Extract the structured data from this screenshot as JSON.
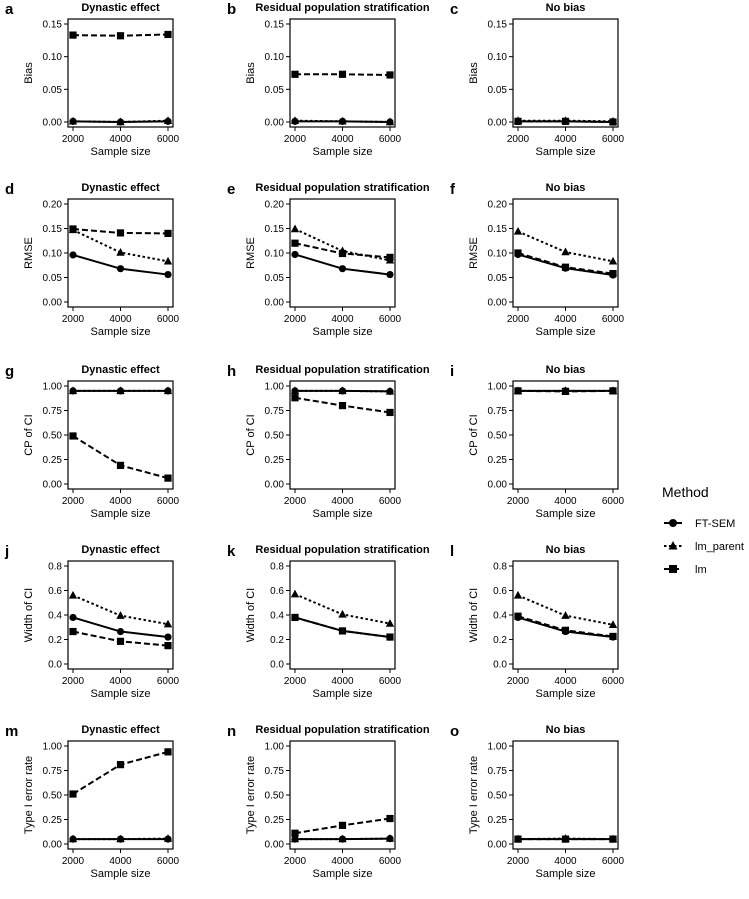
{
  "legend": {
    "title": "Method",
    "items": [
      {
        "label": "FT-SEM",
        "marker": "circle",
        "dash": "solid"
      },
      {
        "label": "lm_parent",
        "marker": "triangle",
        "dash": "dotted"
      },
      {
        "label": "lm",
        "marker": "square",
        "dash": "dashed"
      }
    ]
  },
  "chart_data": [
    {
      "type": "line",
      "panel": "a",
      "title": "Dynastic effect",
      "xlabel": "Sample size",
      "ylabel": "Bias",
      "x": [
        2000,
        4000,
        6000
      ],
      "xticks": [
        "2000",
        "4000",
        "6000"
      ],
      "xlim": [
        2000,
        6000
      ],
      "ylim": [
        0,
        0.15
      ],
      "yticks": [
        "0.00",
        "0.05",
        "0.10",
        "0.15"
      ],
      "series": [
        {
          "name": "FT-SEM",
          "values": [
            0.001,
            0.0,
            0.001
          ]
        },
        {
          "name": "lm_parent",
          "values": [
            0.001,
            0.0,
            0.002
          ]
        },
        {
          "name": "lm",
          "values": [
            0.133,
            0.132,
            0.134
          ]
        }
      ]
    },
    {
      "type": "line",
      "panel": "b",
      "title": "Residual population stratification",
      "xlabel": "Sample size",
      "ylabel": "Bias",
      "x": [
        2000,
        4000,
        6000
      ],
      "xticks": [
        "2000",
        "4000",
        "6000"
      ],
      "xlim": [
        2000,
        6000
      ],
      "ylim": [
        0,
        0.15
      ],
      "yticks": [
        "0.00",
        "0.05",
        "0.10",
        "0.15"
      ],
      "series": [
        {
          "name": "FT-SEM",
          "values": [
            0.001,
            0.001,
            0.0
          ]
        },
        {
          "name": "lm_parent",
          "values": [
            0.002,
            0.001,
            0.0
          ]
        },
        {
          "name": "lm",
          "values": [
            0.073,
            0.073,
            0.072
          ]
        }
      ]
    },
    {
      "type": "line",
      "panel": "c",
      "title": "No bias",
      "xlabel": "Sample size",
      "ylabel": "Bias",
      "x": [
        2000,
        4000,
        6000
      ],
      "xticks": [
        "2000",
        "4000",
        "6000"
      ],
      "xlim": [
        2000,
        6000
      ],
      "ylim": [
        0,
        0.15
      ],
      "yticks": [
        "0.00",
        "0.05",
        "0.10",
        "0.15"
      ],
      "series": [
        {
          "name": "FT-SEM",
          "values": [
            0.001,
            0.001,
            0.0
          ]
        },
        {
          "name": "lm_parent",
          "values": [
            0.002,
            0.002,
            0.001
          ]
        },
        {
          "name": "lm",
          "values": [
            0.001,
            0.001,
            0.0
          ]
        }
      ]
    },
    {
      "type": "line",
      "panel": "d",
      "title": "Dynastic effect",
      "xlabel": "Sample size",
      "ylabel": "RMSE",
      "x": [
        2000,
        4000,
        6000
      ],
      "xticks": [
        "2000",
        "4000",
        "6000"
      ],
      "xlim": [
        2000,
        6000
      ],
      "ylim": [
        0,
        0.2
      ],
      "yticks": [
        "0.00",
        "0.05",
        "0.10",
        "0.15",
        "0.20"
      ],
      "series": [
        {
          "name": "FT-SEM",
          "values": [
            0.096,
            0.068,
            0.056
          ]
        },
        {
          "name": "lm_parent",
          "values": [
            0.147,
            0.101,
            0.083
          ]
        },
        {
          "name": "lm",
          "values": [
            0.149,
            0.141,
            0.14
          ]
        }
      ]
    },
    {
      "type": "line",
      "panel": "e",
      "title": "Residual population stratification",
      "xlabel": "Sample size",
      "ylabel": "RMSE",
      "x": [
        2000,
        4000,
        6000
      ],
      "xticks": [
        "2000",
        "4000",
        "6000"
      ],
      "xlim": [
        2000,
        6000
      ],
      "ylim": [
        0,
        0.2
      ],
      "yticks": [
        "0.00",
        "0.05",
        "0.10",
        "0.15",
        "0.20"
      ],
      "series": [
        {
          "name": "FT-SEM",
          "values": [
            0.097,
            0.068,
            0.056
          ]
        },
        {
          "name": "lm_parent",
          "values": [
            0.149,
            0.104,
            0.085
          ]
        },
        {
          "name": "lm",
          "values": [
            0.12,
            0.099,
            0.091
          ]
        }
      ]
    },
    {
      "type": "line",
      "panel": "f",
      "title": "No bias",
      "xlabel": "Sample size",
      "ylabel": "RMSE",
      "x": [
        2000,
        4000,
        6000
      ],
      "xticks": [
        "2000",
        "4000",
        "6000"
      ],
      "xlim": [
        2000,
        6000
      ],
      "ylim": [
        0,
        0.2
      ],
      "yticks": [
        "0.00",
        "0.05",
        "0.10",
        "0.15",
        "0.20"
      ],
      "series": [
        {
          "name": "FT-SEM",
          "values": [
            0.097,
            0.069,
            0.055
          ]
        },
        {
          "name": "lm_parent",
          "values": [
            0.144,
            0.102,
            0.083
          ]
        },
        {
          "name": "lm",
          "values": [
            0.1,
            0.071,
            0.058
          ]
        }
      ]
    },
    {
      "type": "line",
      "panel": "g",
      "title": "Dynastic effect",
      "xlabel": "Sample size",
      "ylabel": "CP of CI",
      "x": [
        2000,
        4000,
        6000
      ],
      "xticks": [
        "2000",
        "4000",
        "6000"
      ],
      "xlim": [
        2000,
        6000
      ],
      "ylim": [
        0,
        1
      ],
      "yticks": [
        "0.00",
        "0.25",
        "0.50",
        "0.75",
        "1.00"
      ],
      "series": [
        {
          "name": "FT-SEM",
          "values": [
            0.95,
            0.95,
            0.95
          ]
        },
        {
          "name": "lm_parent",
          "values": [
            0.95,
            0.95,
            0.95
          ]
        },
        {
          "name": "lm",
          "values": [
            0.49,
            0.19,
            0.06
          ]
        }
      ]
    },
    {
      "type": "line",
      "panel": "h",
      "title": "Residual population stratification",
      "xlabel": "Sample size",
      "ylabel": "CP of CI",
      "x": [
        2000,
        4000,
        6000
      ],
      "xticks": [
        "2000",
        "4000",
        "6000"
      ],
      "xlim": [
        2000,
        6000
      ],
      "ylim": [
        0,
        1
      ],
      "yticks": [
        "0.00",
        "0.25",
        "0.50",
        "0.75",
        "1.00"
      ],
      "series": [
        {
          "name": "FT-SEM",
          "values": [
            0.95,
            0.95,
            0.945
          ]
        },
        {
          "name": "lm_parent",
          "values": [
            0.95,
            0.95,
            0.945
          ]
        },
        {
          "name": "lm",
          "values": [
            0.88,
            0.8,
            0.73
          ]
        }
      ]
    },
    {
      "type": "line",
      "panel": "i",
      "title": "No bias",
      "xlabel": "Sample size",
      "ylabel": "CP of CI",
      "x": [
        2000,
        4000,
        6000
      ],
      "xticks": [
        "2000",
        "4000",
        "6000"
      ],
      "xlim": [
        2000,
        6000
      ],
      "ylim": [
        0,
        1
      ],
      "yticks": [
        "0.00",
        "0.25",
        "0.50",
        "0.75",
        "1.00"
      ],
      "series": [
        {
          "name": "FT-SEM",
          "values": [
            0.95,
            0.95,
            0.95
          ]
        },
        {
          "name": "lm_parent",
          "values": [
            0.95,
            0.95,
            0.95
          ]
        },
        {
          "name": "lm",
          "values": [
            0.95,
            0.945,
            0.95
          ]
        }
      ]
    },
    {
      "type": "line",
      "panel": "j",
      "title": "Dynastic effect",
      "xlabel": "Sample size",
      "ylabel": "Width of CI",
      "x": [
        2000,
        4000,
        6000
      ],
      "xticks": [
        "2000",
        "4000",
        "6000"
      ],
      "xlim": [
        2000,
        6000
      ],
      "ylim": [
        0,
        0.8
      ],
      "yticks": [
        "0.0",
        "0.2",
        "0.4",
        "0.6",
        "0.8"
      ],
      "series": [
        {
          "name": "FT-SEM",
          "values": [
            0.38,
            0.265,
            0.22
          ]
        },
        {
          "name": "lm_parent",
          "values": [
            0.56,
            0.395,
            0.325
          ]
        },
        {
          "name": "lm",
          "values": [
            0.265,
            0.185,
            0.15
          ]
        }
      ]
    },
    {
      "type": "line",
      "panel": "k",
      "title": "Residual population stratification",
      "xlabel": "Sample size",
      "ylabel": "Width of CI",
      "x": [
        2000,
        4000,
        6000
      ],
      "xticks": [
        "2000",
        "4000",
        "6000"
      ],
      "xlim": [
        2000,
        6000
      ],
      "ylim": [
        0,
        0.8
      ],
      "yticks": [
        "0.0",
        "0.2",
        "0.4",
        "0.6",
        "0.8"
      ],
      "series": [
        {
          "name": "FT-SEM",
          "values": [
            0.38,
            0.27,
            0.22
          ]
        },
        {
          "name": "lm_parent",
          "values": [
            0.57,
            0.405,
            0.33
          ]
        },
        {
          "name": "lm",
          "values": [
            0.38,
            0.27,
            0.22
          ]
        }
      ]
    },
    {
      "type": "line",
      "panel": "l",
      "title": "No bias",
      "xlabel": "Sample size",
      "ylabel": "Width of CI",
      "x": [
        2000,
        4000,
        6000
      ],
      "xticks": [
        "2000",
        "4000",
        "6000"
      ],
      "xlim": [
        2000,
        6000
      ],
      "ylim": [
        0,
        0.8
      ],
      "yticks": [
        "0.0",
        "0.2",
        "0.4",
        "0.6",
        "0.8"
      ],
      "series": [
        {
          "name": "FT-SEM",
          "values": [
            0.38,
            0.265,
            0.22
          ]
        },
        {
          "name": "lm_parent",
          "values": [
            0.56,
            0.395,
            0.32
          ]
        },
        {
          "name": "lm",
          "values": [
            0.39,
            0.275,
            0.225
          ]
        }
      ]
    },
    {
      "type": "line",
      "panel": "m",
      "title": "Dynastic effect",
      "xlabel": "Sample size",
      "ylabel": "Type I error rate",
      "x": [
        2000,
        4000,
        6000
      ],
      "xticks": [
        "2000",
        "4000",
        "6000"
      ],
      "xlim": [
        2000,
        6000
      ],
      "ylim": [
        0,
        1
      ],
      "yticks": [
        "0.00",
        "0.25",
        "0.50",
        "0.75",
        "1.00"
      ],
      "series": [
        {
          "name": "FT-SEM",
          "values": [
            0.05,
            0.05,
            0.05
          ]
        },
        {
          "name": "lm_parent",
          "values": [
            0.05,
            0.05,
            0.055
          ]
        },
        {
          "name": "lm",
          "values": [
            0.51,
            0.81,
            0.94
          ]
        }
      ]
    },
    {
      "type": "line",
      "panel": "n",
      "title": "Residual population stratification",
      "xlabel": "Sample size",
      "ylabel": "Type I error rate",
      "x": [
        2000,
        4000,
        6000
      ],
      "xticks": [
        "2000",
        "4000",
        "6000"
      ],
      "xlim": [
        2000,
        6000
      ],
      "ylim": [
        0,
        1
      ],
      "yticks": [
        "0.00",
        "0.25",
        "0.50",
        "0.75",
        "1.00"
      ],
      "series": [
        {
          "name": "FT-SEM",
          "values": [
            0.05,
            0.05,
            0.055
          ]
        },
        {
          "name": "lm_parent",
          "values": [
            0.05,
            0.05,
            0.055
          ]
        },
        {
          "name": "lm",
          "values": [
            0.11,
            0.19,
            0.26
          ]
        }
      ]
    },
    {
      "type": "line",
      "panel": "o",
      "title": "No bias",
      "xlabel": "Sample size",
      "ylabel": "Type I error rate",
      "x": [
        2000,
        4000,
        6000
      ],
      "xticks": [
        "2000",
        "4000",
        "6000"
      ],
      "xlim": [
        2000,
        6000
      ],
      "ylim": [
        0,
        1
      ],
      "yticks": [
        "0.00",
        "0.25",
        "0.50",
        "0.75",
        "1.00"
      ],
      "series": [
        {
          "name": "FT-SEM",
          "values": [
            0.05,
            0.05,
            0.05
          ]
        },
        {
          "name": "lm_parent",
          "values": [
            0.05,
            0.055,
            0.05
          ]
        },
        {
          "name": "lm",
          "values": [
            0.05,
            0.05,
            0.05
          ]
        }
      ]
    }
  ]
}
